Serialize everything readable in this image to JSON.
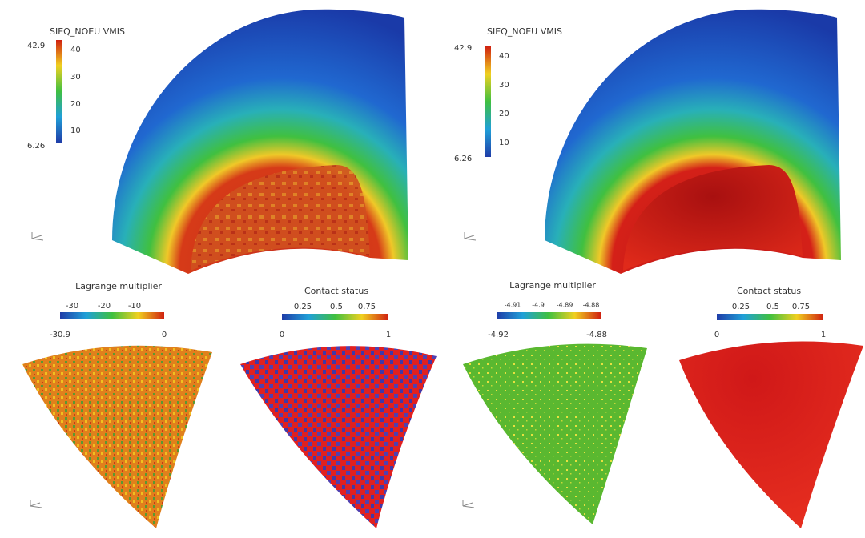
{
  "panels": [
    {
      "title": "SIEQ_NOEU VMIS",
      "max": "42.9",
      "min": "6.26",
      "ticks": [
        "40",
        "30",
        "20",
        "10"
      ]
    },
    {
      "title": "SIEQ_NOEU VMIS",
      "max": "42.9",
      "min": "6.26",
      "ticks": [
        "40",
        "30",
        "20",
        "10"
      ]
    },
    {
      "title": "Lagrange multiplier",
      "min": "-30.9",
      "max": "0",
      "ticks": [
        "-30",
        "-20",
        "-10"
      ]
    },
    {
      "title": "Contact status",
      "min": "0",
      "max": "1",
      "ticks": [
        "0.25",
        "0.5",
        "0.75"
      ]
    },
    {
      "title": "Lagrange multiplier",
      "min": "-4.92",
      "max": "-4.88",
      "ticks": [
        "-4.91",
        "-4.9",
        "-4.89",
        "-4.88"
      ]
    },
    {
      "title": "Contact status",
      "min": "0",
      "max": "1",
      "ticks": [
        "0.25",
        "0.5",
        "0.75"
      ]
    }
  ]
}
